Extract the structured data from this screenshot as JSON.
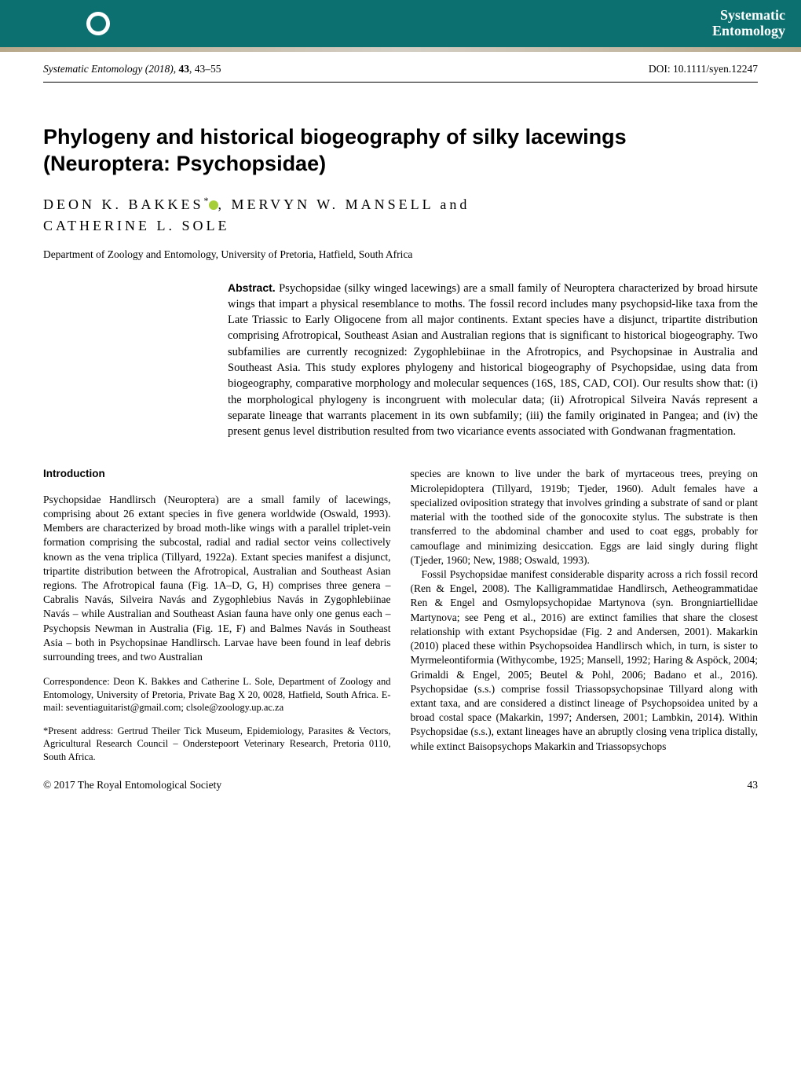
{
  "banner": {
    "journal_name_line1": "Systematic",
    "journal_name_line2": "Entomology"
  },
  "journal_header": {
    "journal_name": "Systematic Entomology",
    "year": "(2018),",
    "volume": "43",
    "pages": ", 43–55",
    "doi": "DOI: 10.1111/syen.12247"
  },
  "title": "Phylogeny and historical biogeography of silky lacewings (Neuroptera: Psychopsidae)",
  "authors": {
    "line": "DEON K. BAKKES",
    "superscript": "*",
    "middle": ", MERVYN W. MANSELL and",
    "last": "CATHERINE L. SOLE"
  },
  "affiliation": "Department of Zoology and Entomology, University of Pretoria, Hatfield, South Africa",
  "abstract": {
    "label": "Abstract.",
    "text": " Psychopsidae (silky winged lacewings) are a small family of Neuroptera characterized by broad hirsute wings that impart a physical resemblance to moths. The fossil record includes many psychopsid-like taxa from the Late Triassic to Early Oligocene from all major continents. Extant species have a disjunct, tripartite distribution comprising Afrotropical, Southeast Asian and Australian regions that is significant to historical biogeography. Two subfamilies are currently recognized: Zygophlebiinae in the Afrotropics, and Psychopsinae in Australia and Southeast Asia. This study explores phylogeny and historical biogeography of Psychopsidae, using data from biogeography, comparative morphology and molecular sequences (16S, 18S, CAD, COI). Our results show that: (i) the morphological phylogeny is incongruent with molecular data; (ii) Afrotropical Silveira Navás represent a separate lineage that warrants placement in its own subfamily; (iii) the family originated in Pangea; and (iv) the present genus level distribution resulted from two vicariance events associated with Gondwanan fragmentation."
  },
  "introduction": {
    "heading": "Introduction",
    "para1": "Psychopsidae Handlirsch (Neuroptera) are a small family of lacewings, comprising about 26 extant species in five genera worldwide (Oswald, 1993). Members are characterized by broad moth-like wings with a parallel triplet-vein formation comprising the subcostal, radial and radial sector veins collectively known as the vena triplica (Tillyard, 1922a). Extant species manifest a disjunct, tripartite distribution between the Afrotropical, Australian and Southeast Asian regions. The Afrotropical fauna (Fig. 1A–D, G, H) comprises three genera – Cabralis Navás, Silveira Navás and Zygophlebius Navás in Zygophlebiinae Navás – while Australian and Southeast Asian fauna have only one genus each – Psychopsis Newman in Australia (Fig. 1E, F) and Balmes Navás in Southeast Asia – both in Psychopsinae Handlirsch. Larvae have been found in leaf debris surrounding trees, and two Australian",
    "para2_right": "species are known to live under the bark of myrtaceous trees, preying on Microlepidoptera (Tillyard, 1919b; Tjeder, 1960). Adult females have a specialized oviposition strategy that involves grinding a substrate of sand or plant material with the toothed side of the gonocoxite stylus. The substrate is then transferred to the abdominal chamber and used to coat eggs, probably for camouflage and minimizing desiccation. Eggs are laid singly during flight (Tjeder, 1960; New, 1988; Oswald, 1993).",
    "para3_right": "Fossil Psychopsidae manifest considerable disparity across a rich fossil record (Ren & Engel, 2008). The Kalligrammatidae Handlirsch, Aetheogrammatidae Ren & Engel and Osmylopsychopidae Martynova (syn. Brongniartiellidae Martynova; see Peng et al., 2016) are extinct families that share the closest relationship with extant Psychopsidae (Fig. 2 and Andersen, 2001). Makarkin (2010) placed these within Psychopsoidea Handlirsch which, in turn, is sister to Myrmeleontiformia (Withycombe, 1925; Mansell, 1992; Haring & Aspöck, 2004; Grimaldi & Engel, 2005; Beutel & Pohl, 2006; Badano et al., 2016). Psychopsidae (s.s.) comprise fossil Triassopsychopsinae Tillyard along with extant taxa, and are considered a distinct lineage of Psychopsoidea united by a broad costal space (Makarkin, 1997; Andersen, 2001; Lambkin, 2014). Within Psychopsidae (s.s.), extant lineages have an abruptly closing vena triplica distally, while extinct Baisopsychops Makarkin and Triassopsychops"
  },
  "correspondence": {
    "text1": "Correspondence: Deon K. Bakkes and Catherine L. Sole, Department of Zoology and Entomology, University of Pretoria, Private Bag X 20, 0028, Hatfield, South Africa. E-mail: seventiaguitarist@gmail.com; clsole@zoology.up.ac.za",
    "text2": "*Present address: Gertrud Theiler Tick Museum, Epidemiology, Parasites & Vectors, Agricultural Research Council – Onderstepoort Veterinary Research, Pretoria 0110, South Africa."
  },
  "footer": {
    "copyright": "© 2017 The Royal Entomological Society",
    "page": "43"
  },
  "colors": {
    "banner_bg": "#0d7070",
    "banner_text": "#ffffff",
    "body_text": "#000000",
    "background": "#ffffff",
    "orcid": "#a6ce39"
  },
  "fonts": {
    "title_family": "Arial, Helvetica, sans-serif",
    "body_family": "Times New Roman, Times, serif",
    "title_size": 27,
    "author_size": 18,
    "body_size": 13.5,
    "abstract_size": 14.5
  }
}
